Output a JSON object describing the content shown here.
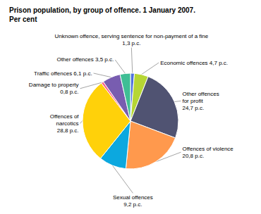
{
  "chart_data": {
    "type": "pie",
    "title": "Prison population, by group of offence. 1 January 2007.",
    "subtitle": "Per cent",
    "categories": [
      "Unknown offence, serving sentence for non-payment of a fine\n1,3 p.c.",
      "Economic offences 4,7 p.c.",
      "Other offences\nfor profit\n24,7 p.c.",
      "Offences of violence\n20,8 p.c.",
      "Sexual offences\n9,2 p.c.",
      "Offences of\nnarcotics\n28,8 p.c.",
      "Damage to property\n0,8 p.c.",
      "Traffic offences 6,1 p.c.",
      "Other offences 3,5 p.c."
    ],
    "values": [
      1.3,
      4.7,
      24.7,
      20.8,
      9.2,
      28.8,
      0.8,
      6.1,
      3.5
    ]
  }
}
